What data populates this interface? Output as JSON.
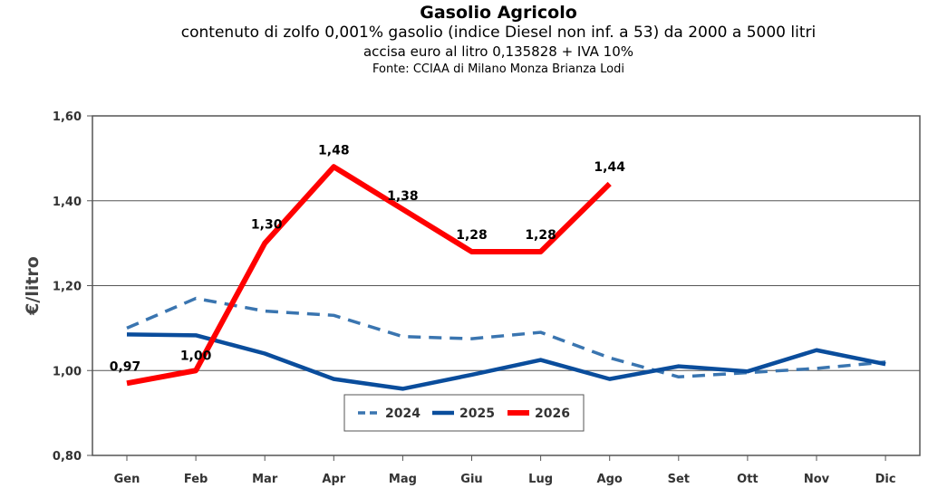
{
  "titles": {
    "title": "Gasolio Agricolo",
    "subtitle": "contenuto di zolfo 0,001% gasolio (indice Diesel non inf. a 53) da 2000 a 5000 litri",
    "subtitle2": "accisa euro al litro 0,135828 + IVA 10%",
    "source": "Fonte: CCIAA di Milano Monza Brianza Lodi"
  },
  "chart_data": {
    "type": "line",
    "ylabel": "€/litro",
    "ylim": [
      0.8,
      1.6
    ],
    "yticks": [
      0.8,
      1.0,
      1.2,
      1.4,
      1.6
    ],
    "ytick_labels": [
      "0,80",
      "1,00",
      "1,20",
      "1,40",
      "1,60"
    ],
    "categories": [
      "Gen",
      "Feb",
      "Mar",
      "Apr",
      "Mag",
      "Giu",
      "Lug",
      "Ago",
      "Set",
      "Ott",
      "Nov",
      "Dic"
    ],
    "grid": true,
    "legend": "bottom-center",
    "series": [
      {
        "name": "2024",
        "color": "#3a75b0",
        "style": "dashed",
        "values": [
          1.1,
          1.17,
          1.14,
          1.13,
          1.08,
          1.075,
          1.09,
          1.03,
          0.985,
          0.995,
          1.005,
          1.02
        ]
      },
      {
        "name": "2025",
        "color": "#0a4d9c",
        "style": "solid",
        "values": [
          1.085,
          1.083,
          1.04,
          0.98,
          0.957,
          0.99,
          1.025,
          0.98,
          1.01,
          0.998,
          1.048,
          1.015
        ]
      },
      {
        "name": "2026",
        "color": "#ff0000",
        "style": "solid",
        "values": [
          0.97,
          1.0,
          1.3,
          1.48,
          1.38,
          1.28,
          1.28,
          1.44,
          null,
          null,
          null,
          null
        ],
        "labels": [
          "0,97",
          "1,00",
          "1,30",
          "1,48",
          "1,38",
          "1,28",
          "1,28",
          "1,44",
          null,
          null,
          null,
          null
        ]
      }
    ]
  }
}
